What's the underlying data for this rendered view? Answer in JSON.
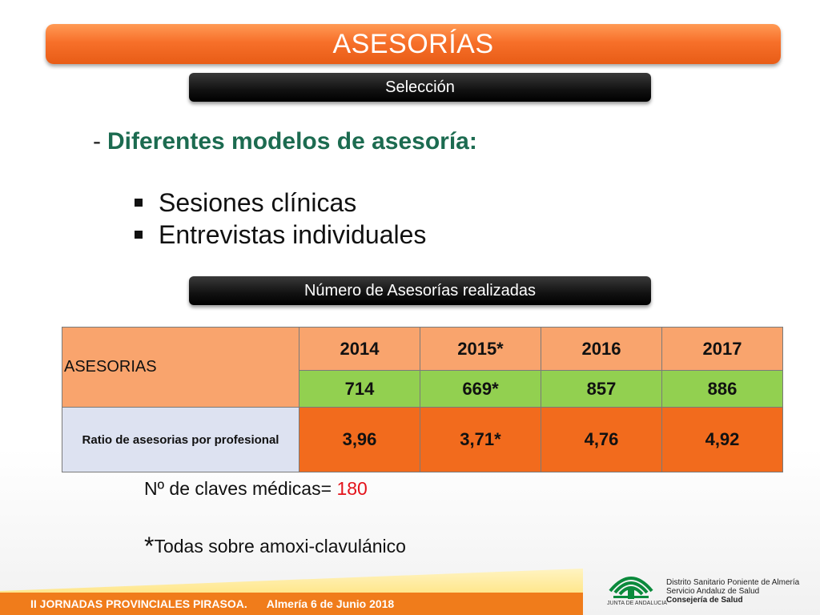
{
  "title": "ASESORÍAS",
  "section_pill_1": "Selección",
  "heading": {
    "dash": "-",
    "text": "Diferentes modelos de asesoría:"
  },
  "bullets": [
    "Sesiones clínicas",
    "Entrevistas individuales"
  ],
  "section_pill_2": "Número de Asesorías realizadas",
  "table": {
    "row_label_asesorias": "ASESORIAS",
    "years": [
      "2014",
      "2015*",
      "2016",
      "2017"
    ],
    "counts": [
      "714",
      "669*",
      "857",
      "886"
    ],
    "row_label_ratio": "Ratio de asesorias por profesional",
    "ratios": [
      "3,96",
      "3,71*",
      "4,76",
      "4,92"
    ]
  },
  "note": {
    "label": "Nº de claves médicas=",
    "value": "180"
  },
  "footnote": {
    "star": "*",
    "text": "Todas sobre amoxi-clavulánico"
  },
  "footer": {
    "event": "II JORNADAS PROVINCIALES PIRASOA.",
    "date": "Almería 6 de Junio 2018"
  },
  "logo": {
    "caption": "JUNTA DE ANDALUCIA",
    "org_line_1": "Distrito Sanitario Poniente de Almería",
    "org_line_2": "Servicio Andaluz de Salud",
    "org_line_3": "Consejería de Salud"
  },
  "colors": {
    "title_orange": "#f7702a",
    "heading_green": "#1c6b50",
    "count_green": "#92d050",
    "ratio_orange": "#f26b1d",
    "highlight_red": "#e3131b",
    "footer_orange": "#f07c1b"
  }
}
